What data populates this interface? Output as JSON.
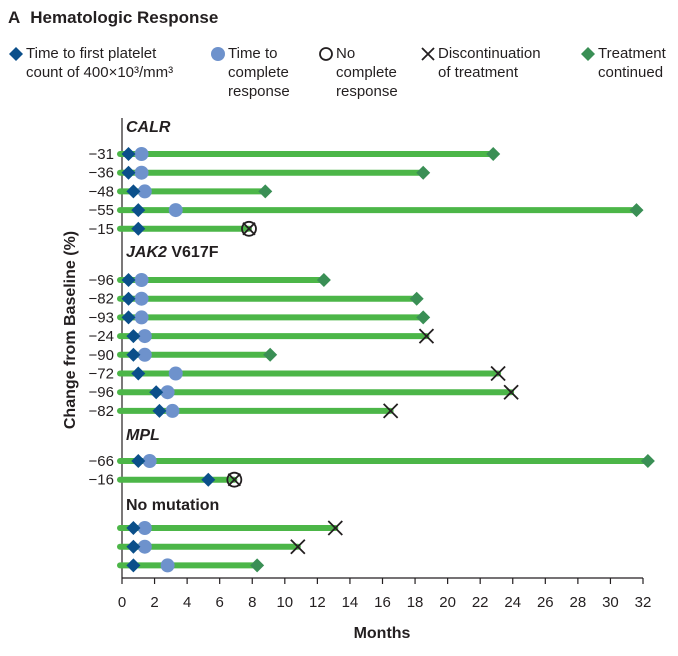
{
  "title": {
    "panel": "A",
    "text": "Hematologic Response"
  },
  "legend": [
    {
      "key": "platelet",
      "lines": [
        "Time to first platelet",
        "count of 400×10³/mm³"
      ],
      "symbol": "diamond",
      "color": "#0b4f8a"
    },
    {
      "key": "cr",
      "lines": [
        "Time to",
        "complete",
        "response"
      ],
      "symbol": "circle",
      "color": "#6e92cc"
    },
    {
      "key": "nocr",
      "lines": [
        "No",
        "complete",
        "response"
      ],
      "symbol": "open-circle",
      "color": "#231f20"
    },
    {
      "key": "disc",
      "lines": [
        "Discontinuation",
        "of treatment"
      ],
      "symbol": "x",
      "color": "#231f20"
    },
    {
      "key": "cont",
      "lines": [
        "Treatment",
        "continued"
      ],
      "symbol": "diamond",
      "color": "#3a8f55"
    }
  ],
  "chart_data": {
    "type": "swimmer",
    "xlabel": "Months",
    "ylabel": "Change from Baseline (%)",
    "xlim": [
      0,
      32
    ],
    "xticks": [
      0,
      2,
      4,
      6,
      8,
      10,
      12,
      14,
      16,
      18,
      20,
      22,
      24,
      26,
      28,
      30,
      32
    ],
    "bar_color": "#4cb648",
    "groups": [
      {
        "name": "CALR",
        "italic_part": "CALR",
        "rest": "",
        "rows": [
          {
            "label": "−31",
            "platelet": 0.4,
            "cr": 1.2,
            "end": 22.8,
            "outcome": "continued"
          },
          {
            "label": "−36",
            "platelet": 0.4,
            "cr": 1.2,
            "end": 18.5,
            "outcome": "continued"
          },
          {
            "label": "−48",
            "platelet": 0.7,
            "cr": 1.4,
            "end": 8.8,
            "outcome": "continued"
          },
          {
            "label": "−55",
            "platelet": 1.0,
            "cr": 3.3,
            "end": 31.6,
            "outcome": "continued"
          },
          {
            "label": "−15",
            "platelet": 1.0,
            "cr": null,
            "end": 7.8,
            "outcome": "no-cr-discontinued"
          }
        ]
      },
      {
        "name": "JAK2 V617F",
        "italic_part": "JAK2",
        "rest": " V617F",
        "rows": [
          {
            "label": "−96",
            "platelet": 0.4,
            "cr": 1.2,
            "end": 12.4,
            "outcome": "continued"
          },
          {
            "label": "−82",
            "platelet": 0.4,
            "cr": 1.2,
            "end": 18.1,
            "outcome": "continued"
          },
          {
            "label": "−93",
            "platelet": 0.4,
            "cr": 1.2,
            "end": 18.5,
            "outcome": "continued"
          },
          {
            "label": "−24",
            "platelet": 0.7,
            "cr": 1.4,
            "end": 18.7,
            "outcome": "discontinued"
          },
          {
            "label": "−90",
            "platelet": 0.7,
            "cr": 1.4,
            "end": 9.1,
            "outcome": "continued"
          },
          {
            "label": "−72",
            "platelet": 1.0,
            "cr": 3.3,
            "end": 23.1,
            "outcome": "discontinued"
          },
          {
            "label": "−96",
            "platelet": 2.1,
            "cr": 2.8,
            "end": 23.9,
            "outcome": "discontinued"
          },
          {
            "label": "−82",
            "platelet": 2.3,
            "cr": 3.1,
            "end": 16.5,
            "outcome": "discontinued"
          }
        ]
      },
      {
        "name": "MPL",
        "italic_part": "MPL",
        "rest": "",
        "rows": [
          {
            "label": "−66",
            "platelet": 1.0,
            "cr": 1.7,
            "end": 32.3,
            "outcome": "continued"
          },
          {
            "label": "−16",
            "platelet": 5.3,
            "cr": null,
            "end": 6.9,
            "outcome": "no-cr-discontinued"
          }
        ]
      },
      {
        "name": "No mutation",
        "italic_part": "",
        "rest": "No mutation",
        "rows": [
          {
            "label": "",
            "platelet": 0.7,
            "cr": 1.4,
            "end": 13.1,
            "outcome": "discontinued"
          },
          {
            "label": "",
            "platelet": 0.7,
            "cr": 1.4,
            "end": 10.8,
            "outcome": "discontinued"
          },
          {
            "label": "",
            "platelet": 0.7,
            "cr": 2.8,
            "end": 8.3,
            "outcome": "continued"
          }
        ]
      }
    ]
  }
}
